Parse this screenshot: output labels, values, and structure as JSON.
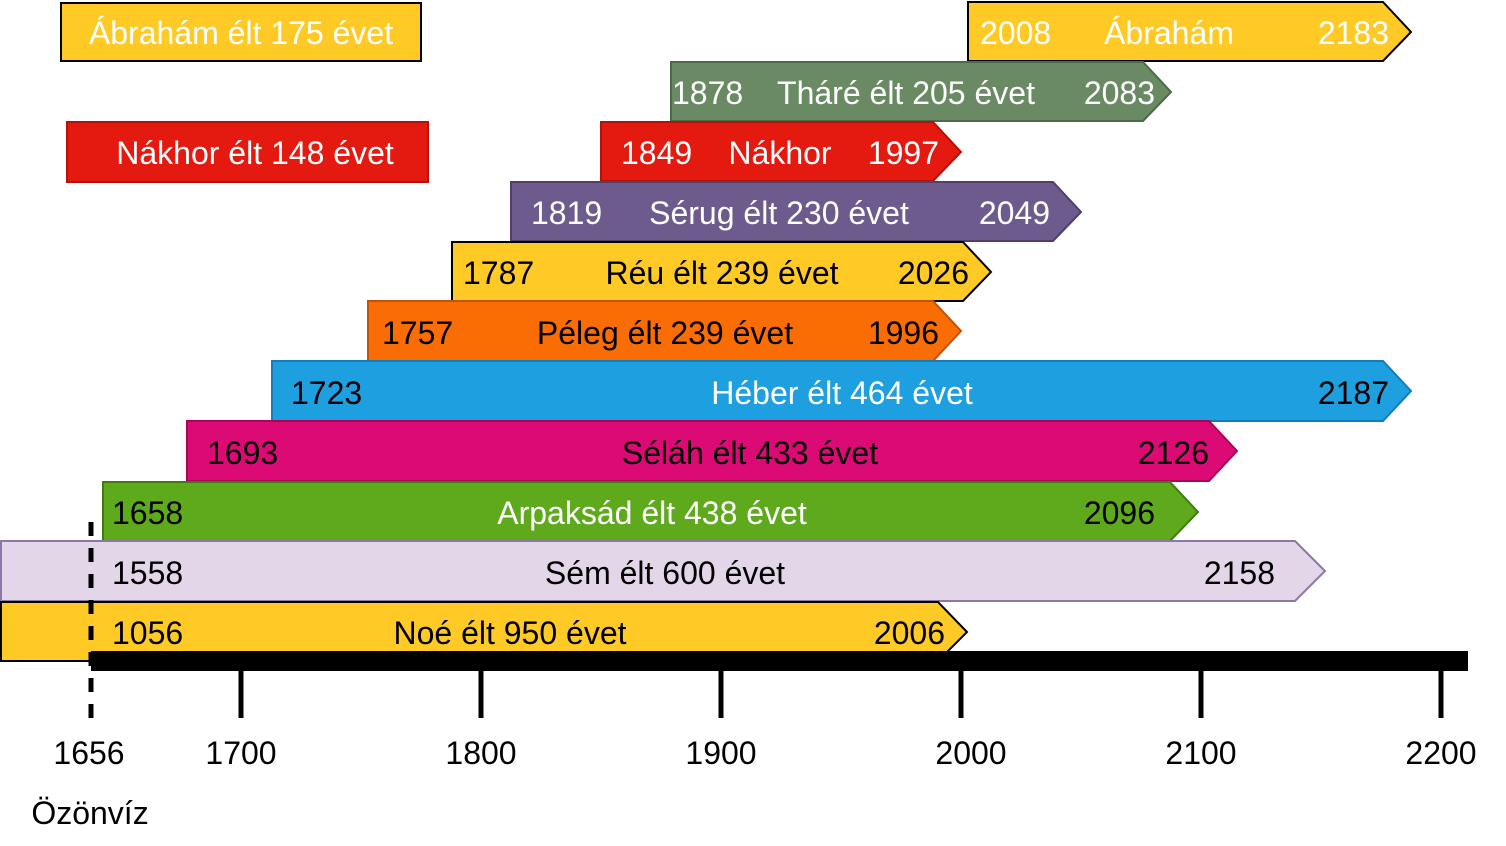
{
  "axis": {
    "ticks": [
      {
        "year": 1656,
        "label": "1656"
      },
      {
        "year": 1700,
        "label": "1700"
      },
      {
        "year": 1800,
        "label": "1800"
      },
      {
        "year": 1900,
        "label": "1900"
      },
      {
        "year": 2000,
        "label": "2000"
      },
      {
        "year": 2100,
        "label": "2100"
      },
      {
        "year": 2200,
        "label": "2200"
      }
    ],
    "flood_label": "Özönvíz",
    "flood_year": 1656
  },
  "legends": [
    {
      "text": "Ábrahám élt 175 évet",
      "color": "#ffc926",
      "border": "#000000",
      "text_color": "#ffffff"
    },
    {
      "text": "Nákhor élt 148 évet",
      "color": "#e4190f",
      "border": "#b0140b",
      "text_color": "#ffffff"
    }
  ],
  "bars": [
    {
      "name": "abraham",
      "start": "2008",
      "label": "Ábrahám",
      "end": "2183",
      "color": "#ffc926",
      "border": "#000000",
      "text_color": "#ffffff"
    },
    {
      "name": "thare",
      "start": "1878",
      "label": "Tháré élt 205 évet",
      "end": "2083",
      "color": "#6a8a64",
      "border": "#4d6a48",
      "text_color": "#ffffff"
    },
    {
      "name": "nakhor",
      "start": "1849",
      "label": "Nákhor",
      "end": "1997",
      "color": "#e4190f",
      "border": "#b0140b",
      "text_color": "#ffffff"
    },
    {
      "name": "serug",
      "start": "1819",
      "label": "Sérug élt 230 évet",
      "end": "2049",
      "color": "#6e5b8d",
      "border": "#4f3f6a",
      "text_color": "#ffffff"
    },
    {
      "name": "reu",
      "start": "1787",
      "label": "Réu élt 239 évet",
      "end": "2026",
      "color": "#ffc926",
      "border": "#000000",
      "text_color": "#000000"
    },
    {
      "name": "peleg",
      "start": "1757",
      "label": "Péleg élt 239 évet",
      "end": "1996",
      "color": "#fa6d05",
      "border": "#c0530a",
      "text_color": "#000000"
    },
    {
      "name": "heber",
      "start": "1723",
      "label": "Héber élt 464 évet",
      "end": "2187",
      "color": "#1e9fe0",
      "border": "#137dbb",
      "text_color": "#000000",
      "label_color": "#ffffff"
    },
    {
      "name": "selah",
      "start": "1693",
      "label": "Séláh élt 433 évet",
      "end": "2126",
      "color": "#db0a74",
      "border": "#a80659",
      "text_color": "#000000"
    },
    {
      "name": "arpaksad",
      "start": "1658",
      "label": "Arpaksád élt 438 évet",
      "end": "2096",
      "color": "#5fa91d",
      "border": "#3f7d10",
      "text_color": "#000000",
      "label_color": "#ffffff"
    },
    {
      "name": "sem",
      "start": "1558",
      "label": "Sém élt 600 évet",
      "end": "2158",
      "color": "#e2d6e8",
      "border": "#8c78a5",
      "text_color": "#000000"
    },
    {
      "name": "noe",
      "start": "1056",
      "label": "Noé élt 950 évet",
      "end": "2006",
      "color": "#ffc926",
      "border": "#000000",
      "text_color": "#000000"
    }
  ]
}
